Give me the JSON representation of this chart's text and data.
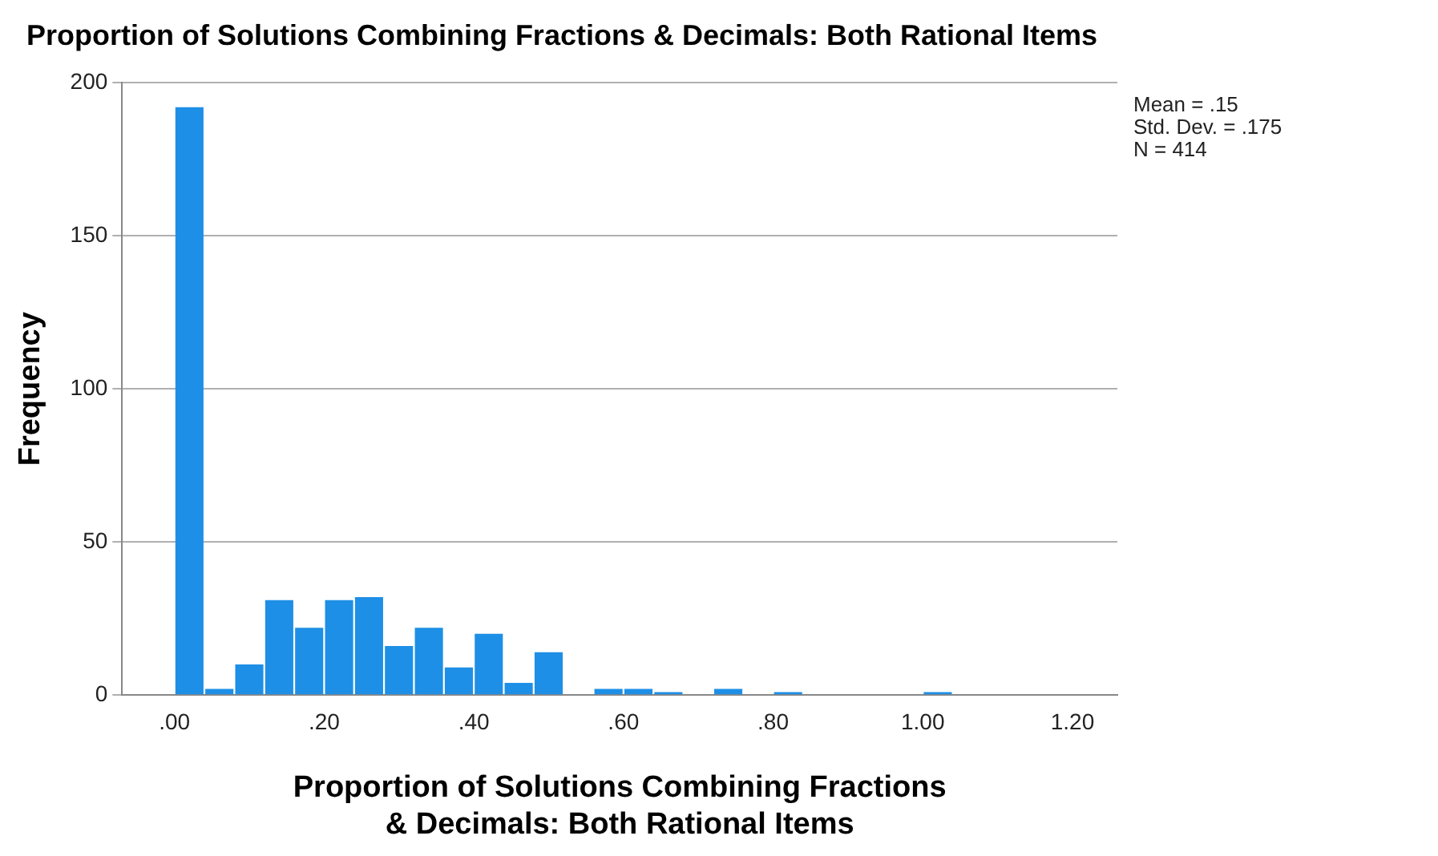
{
  "chart_data": {
    "type": "histogram",
    "title": "Proportion of Solutions Combining Fractions & Decimals: Both Rational Items",
    "xlabel": "Proportion of Solutions Combining Fractions & Decimals: Both Rational Items",
    "ylabel": "Frequency",
    "bins": [
      0,
      0.04,
      0.08,
      0.12,
      0.16,
      0.2,
      0.24,
      0.28,
      0.32,
      0.36,
      0.4,
      0.44,
      0.48,
      0.52,
      0.56,
      0.6,
      0.64,
      0.68,
      0.72,
      0.76,
      0.8,
      0.84,
      0.88,
      0.92,
      0.96,
      1.0,
      1.04
    ],
    "values": [
      192,
      2,
      10,
      31,
      22,
      31,
      32,
      16,
      22,
      9,
      20,
      4,
      14,
      0,
      2,
      2,
      1,
      0,
      2,
      0,
      1,
      0,
      0,
      0,
      0,
      1
    ],
    "color": "#1e8fe6",
    "xlim": [
      -0.07,
      1.26
    ],
    "xticks": [
      {
        "value": 0,
        "label": ".00"
      },
      {
        "value": 0.2,
        "label": ".20"
      },
      {
        "value": 0.4,
        "label": ".40"
      },
      {
        "value": 0.6,
        "label": ".60"
      },
      {
        "value": 0.8,
        "label": ".80"
      },
      {
        "value": 1.0,
        "label": "1.00"
      },
      {
        "value": 1.2,
        "label": "1.20"
      }
    ],
    "ylim": [
      0,
      200
    ],
    "yticks": [
      0,
      50,
      100,
      150,
      200
    ],
    "grid": "y",
    "legend": false,
    "annotations": [
      "Mean = .15",
      "Std. Dev. = .175",
      "N = 414"
    ]
  }
}
